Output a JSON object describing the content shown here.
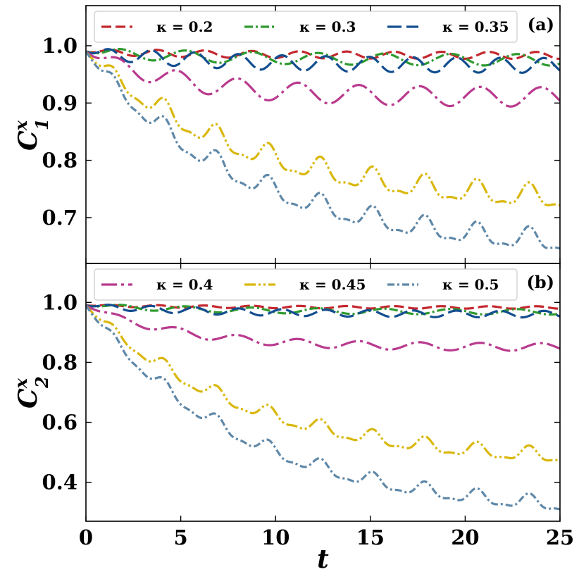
{
  "chart_data": [
    {
      "type": "line",
      "panel_label": "(a)",
      "ylabel_base": "C",
      "ylabel_sup": "x",
      "ylabel_sub": "1",
      "xlabel": "",
      "xlim": [
        0,
        25
      ],
      "ylim": [
        0.62,
        1.07
      ],
      "xticks": [
        0,
        5,
        10,
        15,
        20,
        25
      ],
      "xtick_labels": [
        "",
        "",
        "",
        "",
        "",
        ""
      ],
      "yticks": [
        0.7,
        0.8,
        0.9,
        1.0
      ],
      "ytick_labels": [
        "0.7",
        "0.8",
        "0.9",
        "1.0"
      ],
      "legend": {
        "position": "top",
        "entries": [
          "κ = 0.2",
          "κ = 0.3",
          "κ = 0.35"
        ],
        "labels": [
          "κ = 0.2",
          "κ = 0.3",
          "κ = 0.35"
        ]
      },
      "series": [
        {
          "name": "κ = 0.2",
          "color": "#c4272e",
          "dash": "dashed",
          "start": 0.99,
          "floor": 0.983,
          "drop_rate": 0.15,
          "amp": 0.006,
          "period": 2.5,
          "ramp": 1.0,
          "half": 0.0
        },
        {
          "name": "κ = 0.3",
          "color": "#2e9a2e",
          "dash": "dashdot",
          "start": 0.99,
          "floor": 0.975,
          "drop_rate": 0.15,
          "amp": 0.01,
          "period": 3.5,
          "ramp": 1.2,
          "half": 0.0
        },
        {
          "name": "κ = 0.35",
          "color": "#134e8f",
          "dash": "longdash",
          "start": 0.99,
          "floor": 0.965,
          "drop_rate": 0.15,
          "amp": 0.013,
          "period": 2.3,
          "ramp": 1.2,
          "half": 0.0
        },
        {
          "name": "κ = 0.4",
          "color": "#b93a8e",
          "dash": "longdashdot",
          "start": 0.99,
          "floor": 0.91,
          "drop_rate": 0.2,
          "amp": 0.017,
          "period": 3.2,
          "ramp": 1.5,
          "half": 0.0
        },
        {
          "name": "κ = 0.45",
          "color": "#d9b70c",
          "dash": "dashdotdot",
          "start": 0.99,
          "floor": 0.72,
          "drop_rate": 0.12,
          "amp": 0.018,
          "period": 2.75,
          "ramp": 1.5,
          "half": 0.4
        },
        {
          "name": "κ = 0.5",
          "color": "#5f88a8",
          "dash": "dashdot2",
          "start": 0.99,
          "floor": 0.64,
          "drop_rate": 0.12,
          "amp": 0.017,
          "period": 2.75,
          "ramp": 1.5,
          "half": 0.4
        }
      ]
    },
    {
      "type": "line",
      "panel_label": "(b)",
      "ylabel_base": "C",
      "ylabel_sup": "x",
      "ylabel_sub": "2",
      "xlabel": "t",
      "xlim": [
        0,
        25
      ],
      "ylim": [
        0.27,
        1.13
      ],
      "xticks": [
        0,
        5,
        10,
        15,
        20,
        25
      ],
      "xtick_labels": [
        "0",
        "5",
        "10",
        "15",
        "20",
        "25"
      ],
      "yticks": [
        0.4,
        0.6,
        0.8,
        1.0
      ],
      "ytick_labels": [
        "0.4",
        "0.6",
        "0.8",
        "1.0"
      ],
      "legend": {
        "position": "top",
        "entries": [
          "κ = 0.4",
          "κ = 0.45",
          "κ = 0.5"
        ],
        "labels": [
          "κ = 0.4",
          "κ = 0.45",
          "κ = 0.5"
        ]
      },
      "series": [
        {
          "name": "κ = 0.2",
          "color": "#c4272e",
          "dash": "dashed",
          "start": 0.99,
          "floor": 0.983,
          "drop_rate": 0.15,
          "amp": 0.004,
          "period": 2.5,
          "ramp": 1.0,
          "half": 0.0
        },
        {
          "name": "κ = 0.3",
          "color": "#2e9a2e",
          "dash": "dashdot",
          "start": 0.99,
          "floor": 0.968,
          "drop_rate": 0.15,
          "amp": 0.009,
          "period": 3.5,
          "ramp": 1.2,
          "half": 0.0
        },
        {
          "name": "κ = 0.35",
          "color": "#134e8f",
          "dash": "longdash",
          "start": 0.99,
          "floor": 0.96,
          "drop_rate": 0.15,
          "amp": 0.011,
          "period": 2.3,
          "ramp": 1.2,
          "half": 0.0
        },
        {
          "name": "κ = 0.4",
          "color": "#b93a8e",
          "dash": "longdashdot",
          "start": 0.99,
          "floor": 0.85,
          "drop_rate": 0.2,
          "amp": 0.013,
          "period": 3.2,
          "ramp": 1.5,
          "half": 0.0
        },
        {
          "name": "κ = 0.45",
          "color": "#d9b70c",
          "dash": "dashdotdot",
          "start": 0.99,
          "floor": 0.46,
          "drop_rate": 0.12,
          "amp": 0.022,
          "period": 2.75,
          "ramp": 1.5,
          "half": 0.4
        },
        {
          "name": "κ = 0.5",
          "color": "#5f88a8",
          "dash": "dashdot2",
          "start": 0.99,
          "floor": 0.29,
          "drop_rate": 0.12,
          "amp": 0.022,
          "period": 2.75,
          "ramp": 1.5,
          "half": 0.4
        }
      ]
    }
  ]
}
